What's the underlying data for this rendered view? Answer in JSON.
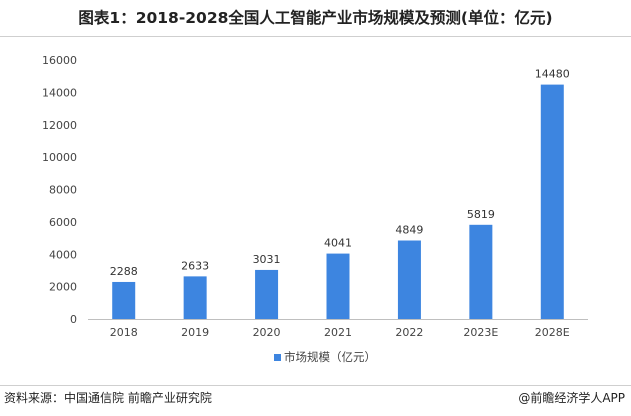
{
  "header": {
    "title": "图表1：2018-2028全国人工智能产业市场规模及预测(单位：亿元)"
  },
  "footer": {
    "source": "资料来源：中国通信院 前瞻产业研究院",
    "credit": "@前瞻经济学人APP"
  },
  "chart_data": {
    "type": "bar",
    "title": "图表1：2018-2028全国人工智能产业市场规模及预测(单位：亿元)",
    "categories": [
      "2018",
      "2019",
      "2020",
      "2021",
      "2022",
      "2023E",
      "2028E"
    ],
    "series": [
      {
        "name": "市场规模（亿元）",
        "values": [
          2288,
          2633,
          3031,
          4041,
          4849,
          5819,
          14480
        ],
        "color": "#3d85e0"
      }
    ],
    "ylim": [
      0,
      16000
    ],
    "yticks": [
      0,
      2000,
      4000,
      6000,
      8000,
      10000,
      12000,
      14000,
      16000
    ],
    "grid": false,
    "legend_position": "bottom-center",
    "data_labels": true
  }
}
